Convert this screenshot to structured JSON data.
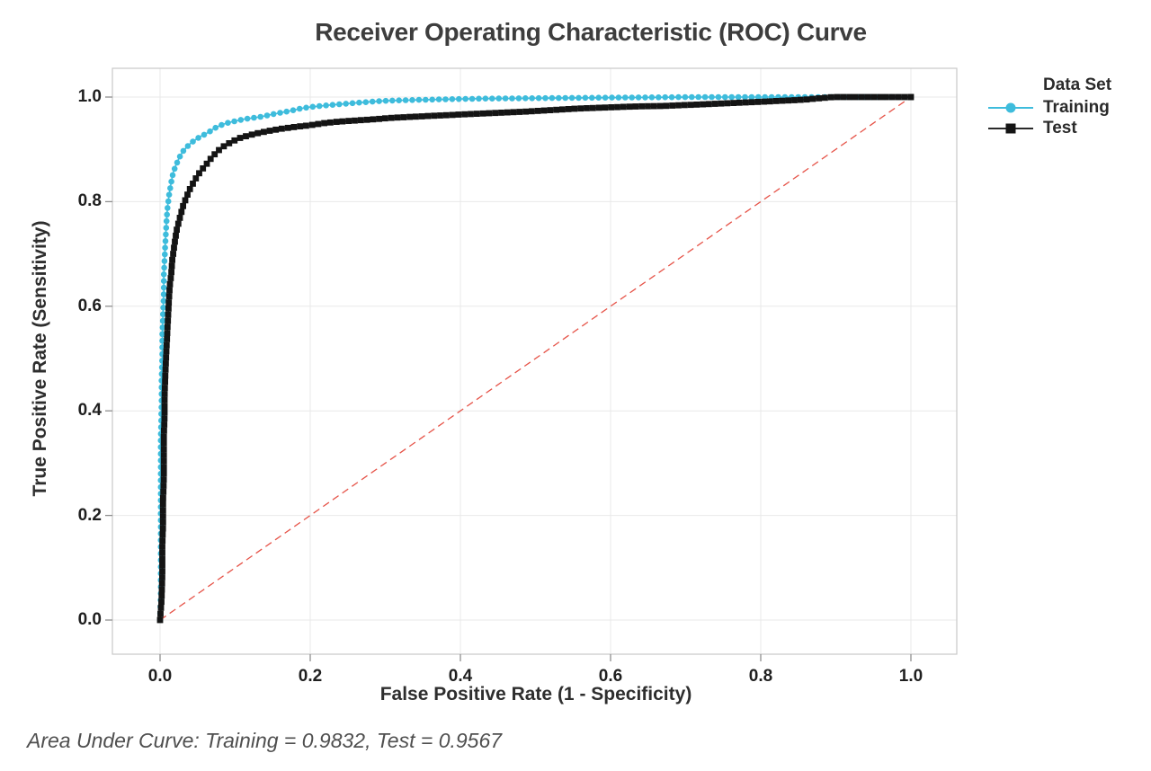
{
  "title": "Receiver Operating Characteristic (ROC) Curve",
  "footnote": "Area Under Curve: Training = 0.9832, Test = 0.9567",
  "axes": {
    "x_label": "False Positive Rate (1 - Specificity)",
    "y_label": "True Positive Rate (Sensitivity)",
    "x_ticks": [
      {
        "value": 0.0,
        "label": "0.0"
      },
      {
        "value": 0.2,
        "label": "0.2"
      },
      {
        "value": 0.4,
        "label": "0.4"
      },
      {
        "value": 0.6,
        "label": "0.6"
      },
      {
        "value": 0.8,
        "label": "0.8"
      },
      {
        "value": 1.0,
        "label": "1.0"
      }
    ],
    "y_ticks": [
      {
        "value": 0.0,
        "label": "0.0"
      },
      {
        "value": 0.2,
        "label": "0.2"
      },
      {
        "value": 0.4,
        "label": "0.4"
      },
      {
        "value": 0.6,
        "label": "0.6"
      },
      {
        "value": 0.8,
        "label": "0.8"
      },
      {
        "value": 1.0,
        "label": "1.0"
      }
    ]
  },
  "legend": {
    "title": "Data Set",
    "entries": [
      {
        "label": "Training",
        "color": "#3ebcdc",
        "marker": "circle"
      },
      {
        "label": "Test",
        "color": "#141414",
        "marker": "square"
      }
    ]
  },
  "colors": {
    "training": "#3ebcdc",
    "test": "#141414",
    "reference": "#e65348",
    "grid": "#e9e9e9",
    "frame": "#c8c8c8",
    "tick_mark": "#8f8f8f"
  },
  "chart_data": {
    "type": "line",
    "title": "Receiver Operating Characteristic (ROC) Curve",
    "xlabel": "False Positive Rate (1 - Specificity)",
    "ylabel": "True Positive Rate (Sensitivity)",
    "xlim": [
      0,
      1
    ],
    "ylim": [
      0,
      1
    ],
    "grid": true,
    "legend_position": "right",
    "footnote": "Area Under Curve: Training = 0.9832, Test = 0.9567",
    "reference_line": {
      "type": "diagonal",
      "style": "dashed",
      "color": "#e65348",
      "from": [
        0,
        0
      ],
      "to": [
        1,
        1
      ]
    },
    "series": [
      {
        "name": "Training",
        "auc": 0.9832,
        "color": "#3ebcdc",
        "marker": "circle",
        "points": [
          [
            0.0,
            0.0
          ],
          [
            0.001,
            0.05
          ],
          [
            0.001,
            0.11
          ],
          [
            0.001,
            0.17
          ],
          [
            0.001,
            0.23
          ],
          [
            0.001,
            0.29
          ],
          [
            0.001,
            0.35
          ],
          [
            0.002,
            0.41
          ],
          [
            0.002,
            0.46
          ],
          [
            0.003,
            0.505
          ],
          [
            0.003,
            0.545
          ],
          [
            0.004,
            0.585
          ],
          [
            0.005,
            0.625
          ],
          [
            0.005,
            0.66
          ],
          [
            0.006,
            0.69
          ],
          [
            0.007,
            0.72
          ],
          [
            0.008,
            0.748
          ],
          [
            0.009,
            0.77
          ],
          [
            0.01,
            0.79
          ],
          [
            0.012,
            0.812
          ],
          [
            0.014,
            0.83
          ],
          [
            0.016,
            0.846
          ],
          [
            0.018,
            0.858
          ],
          [
            0.021,
            0.869
          ],
          [
            0.024,
            0.879
          ],
          [
            0.027,
            0.888
          ],
          [
            0.031,
            0.897
          ],
          [
            0.036,
            0.905
          ],
          [
            0.041,
            0.912
          ],
          [
            0.047,
            0.918
          ],
          [
            0.053,
            0.924
          ],
          [
            0.06,
            0.929
          ],
          [
            0.066,
            0.934
          ],
          [
            0.072,
            0.94
          ],
          [
            0.079,
            0.945
          ],
          [
            0.086,
            0.949
          ],
          [
            0.094,
            0.952
          ],
          [
            0.103,
            0.955
          ],
          [
            0.113,
            0.958
          ],
          [
            0.123,
            0.96
          ],
          [
            0.133,
            0.962
          ],
          [
            0.143,
            0.965
          ],
          [
            0.153,
            0.968
          ],
          [
            0.164,
            0.971
          ],
          [
            0.175,
            0.974
          ],
          [
            0.187,
            0.978
          ],
          [
            0.2,
            0.981
          ],
          [
            0.214,
            0.983
          ],
          [
            0.229,
            0.985
          ],
          [
            0.245,
            0.987
          ],
          [
            0.262,
            0.989
          ],
          [
            0.281,
            0.991
          ],
          [
            0.302,
            0.993
          ],
          [
            0.327,
            0.994
          ],
          [
            0.356,
            0.995
          ],
          [
            0.39,
            0.996
          ],
          [
            0.43,
            0.997
          ],
          [
            0.47,
            0.9975
          ],
          [
            0.515,
            0.998
          ],
          [
            0.56,
            0.9985
          ],
          [
            0.61,
            0.999
          ],
          [
            0.66,
            0.9995
          ],
          [
            0.71,
            1.0
          ],
          [
            0.8,
            1.0
          ],
          [
            0.9,
            1.0
          ],
          [
            1.0,
            1.0
          ]
        ]
      },
      {
        "name": "Test",
        "auc": 0.9567,
        "color": "#141414",
        "marker": "square",
        "points": [
          [
            0.0,
            0.0
          ],
          [
            0.002,
            0.04
          ],
          [
            0.003,
            0.09
          ],
          [
            0.003,
            0.14
          ],
          [
            0.004,
            0.185
          ],
          [
            0.004,
            0.23
          ],
          [
            0.005,
            0.27
          ],
          [
            0.005,
            0.31
          ],
          [
            0.005,
            0.35
          ],
          [
            0.006,
            0.39
          ],
          [
            0.006,
            0.43
          ],
          [
            0.007,
            0.468
          ],
          [
            0.008,
            0.5
          ],
          [
            0.009,
            0.532
          ],
          [
            0.01,
            0.562
          ],
          [
            0.011,
            0.59
          ],
          [
            0.012,
            0.616
          ],
          [
            0.013,
            0.64
          ],
          [
            0.015,
            0.663
          ],
          [
            0.016,
            0.685
          ],
          [
            0.018,
            0.706
          ],
          [
            0.02,
            0.726
          ],
          [
            0.022,
            0.745
          ],
          [
            0.025,
            0.762
          ],
          [
            0.028,
            0.778
          ],
          [
            0.031,
            0.793
          ],
          [
            0.035,
            0.808
          ],
          [
            0.039,
            0.822
          ],
          [
            0.044,
            0.835
          ],
          [
            0.049,
            0.848
          ],
          [
            0.055,
            0.86
          ],
          [
            0.062,
            0.872
          ],
          [
            0.069,
            0.885
          ],
          [
            0.077,
            0.897
          ],
          [
            0.086,
            0.907
          ],
          [
            0.096,
            0.915
          ],
          [
            0.107,
            0.922
          ],
          [
            0.119,
            0.927
          ],
          [
            0.133,
            0.932
          ],
          [
            0.148,
            0.936
          ],
          [
            0.164,
            0.94
          ],
          [
            0.181,
            0.943
          ],
          [
            0.199,
            0.946
          ],
          [
            0.218,
            0.95
          ],
          [
            0.238,
            0.953
          ],
          [
            0.259,
            0.955
          ],
          [
            0.281,
            0.957
          ],
          [
            0.306,
            0.96
          ],
          [
            0.333,
            0.962
          ],
          [
            0.361,
            0.964
          ],
          [
            0.391,
            0.966
          ],
          [
            0.421,
            0.968
          ],
          [
            0.453,
            0.97
          ],
          [
            0.486,
            0.972
          ],
          [
            0.521,
            0.975
          ],
          [
            0.557,
            0.978
          ],
          [
            0.594,
            0.98
          ],
          [
            0.632,
            0.982
          ],
          [
            0.67,
            0.983
          ],
          [
            0.705,
            0.985
          ],
          [
            0.738,
            0.987
          ],
          [
            0.77,
            0.989
          ],
          [
            0.8,
            0.991
          ],
          [
            0.83,
            0.993
          ],
          [
            0.858,
            0.995
          ],
          [
            0.88,
            0.998
          ],
          [
            0.897,
            1.0
          ],
          [
            0.95,
            1.0
          ],
          [
            1.0,
            1.0
          ]
        ]
      }
    ]
  }
}
